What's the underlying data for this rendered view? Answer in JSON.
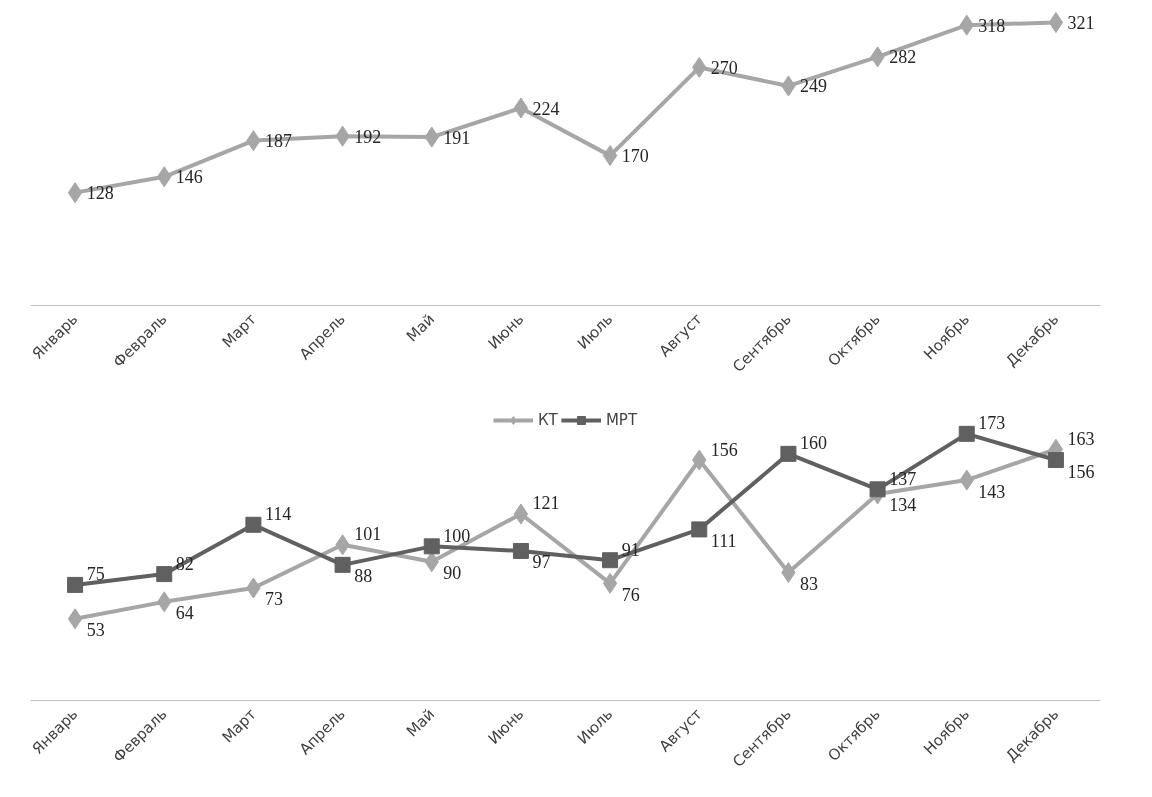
{
  "chart_data": [
    {
      "type": "line",
      "categories": [
        "Январь",
        "Февраль",
        "Март",
        "Апрель",
        "Май",
        "Июнь",
        "Июль",
        "Август",
        "Сентябрь",
        "Октябрь",
        "Ноябрь",
        "Декабрь"
      ],
      "series": [
        {
          "color": "#a6a6a6",
          "marker": "diamond",
          "values": [
            128,
            146,
            187,
            192,
            191,
            224,
            170,
            270,
            249,
            282,
            318,
            321
          ]
        }
      ],
      "data_labels": true,
      "grid": false,
      "legend": false,
      "tick_labels": "x"
    },
    {
      "type": "line",
      "categories": [
        "Январь",
        "Февраль",
        "Март",
        "Апрель",
        "Май",
        "Июнь",
        "Июль",
        "Август",
        "Сентябрь",
        "Октябрь",
        "Ноябрь",
        "Декабрь"
      ],
      "series": [
        {
          "name": "КТ",
          "color": "#a6a6a6",
          "marker": "diamond",
          "values": [
            53,
            64,
            73,
            101,
            90,
            121,
            76,
            156,
            83,
            134,
            143,
            163
          ]
        },
        {
          "name": "МРТ",
          "color": "#606060",
          "marker": "square",
          "values": [
            75,
            82,
            114,
            88,
            100,
            97,
            91,
            111,
            160,
            137,
            173,
            156
          ]
        }
      ],
      "data_labels": true,
      "grid": false,
      "legend": "top",
      "tick_labels": "x"
    }
  ]
}
